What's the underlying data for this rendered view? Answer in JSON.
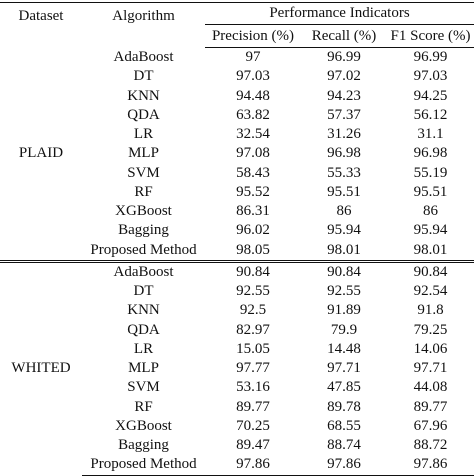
{
  "headers": {
    "dataset": "Dataset",
    "algorithm": "Algorithm",
    "performance": "Performance Indicators",
    "precision": "Precision (%)",
    "recall": "Recall (%)",
    "f1": "F1 Score (%)"
  },
  "groups": [
    {
      "dataset": "PLAID",
      "rows": [
        {
          "algorithm": "AdaBoost",
          "precision": "97",
          "recall": "96.99",
          "f1": "96.99"
        },
        {
          "algorithm": "DT",
          "precision": "97.03",
          "recall": "97.02",
          "f1": "97.03"
        },
        {
          "algorithm": "KNN",
          "precision": "94.48",
          "recall": "94.23",
          "f1": "94.25"
        },
        {
          "algorithm": "QDA",
          "precision": "63.82",
          "recall": "57.37",
          "f1": "56.12"
        },
        {
          "algorithm": "LR",
          "precision": "32.54",
          "recall": "31.26",
          "f1": "31.1"
        },
        {
          "algorithm": "MLP",
          "precision": "97.08",
          "recall": "96.98",
          "f1": "96.98"
        },
        {
          "algorithm": "SVM",
          "precision": "58.43",
          "recall": "55.33",
          "f1": "55.19"
        },
        {
          "algorithm": "RF",
          "precision": "95.52",
          "recall": "95.51",
          "f1": "95.51"
        },
        {
          "algorithm": "XGBoost",
          "precision": "86.31",
          "recall": "86",
          "f1": "86"
        },
        {
          "algorithm": "Bagging",
          "precision": "96.02",
          "recall": "95.94",
          "f1": "95.94"
        },
        {
          "algorithm": "Proposed Method",
          "precision": "98.05",
          "recall": "98.01",
          "f1": "98.01"
        }
      ]
    },
    {
      "dataset": "WHITED",
      "rows": [
        {
          "algorithm": "AdaBoost",
          "precision": "90.84",
          "recall": "90.84",
          "f1": "90.84"
        },
        {
          "algorithm": "DT",
          "precision": "92.55",
          "recall": "92.55",
          "f1": "92.54"
        },
        {
          "algorithm": "KNN",
          "precision": "92.5",
          "recall": "91.89",
          "f1": "91.8"
        },
        {
          "algorithm": "QDA",
          "precision": "82.97",
          "recall": "79.9",
          "f1": "79.25"
        },
        {
          "algorithm": "LR",
          "precision": "15.05",
          "recall": "14.48",
          "f1": "14.06"
        },
        {
          "algorithm": "MLP",
          "precision": "97.77",
          "recall": "97.71",
          "f1": "97.71"
        },
        {
          "algorithm": "SVM",
          "precision": "53.16",
          "recall": "47.85",
          "f1": "44.08"
        },
        {
          "algorithm": "RF",
          "precision": "89.77",
          "recall": "89.78",
          "f1": "89.77"
        },
        {
          "algorithm": "XGBoost",
          "precision": "70.25",
          "recall": "68.55",
          "f1": "67.96"
        },
        {
          "algorithm": "Bagging",
          "precision": "89.47",
          "recall": "88.74",
          "f1": "88.72"
        },
        {
          "algorithm": "Proposed Method",
          "precision": "97.86",
          "recall": "97.86",
          "f1": "97.86"
        }
      ]
    }
  ]
}
